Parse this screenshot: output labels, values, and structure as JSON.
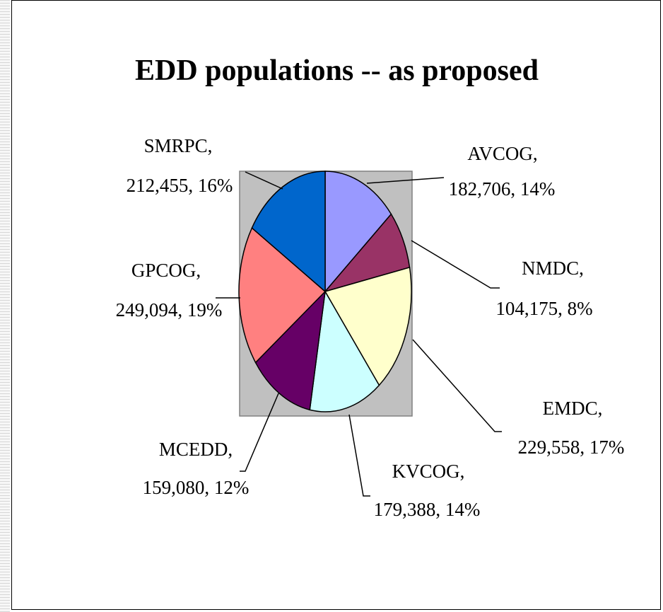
{
  "chart_data": {
    "type": "pie",
    "title": "EDD populations -- as proposed",
    "slices": [
      {
        "name": "AVCOG",
        "value": 182706,
        "percent": "14%",
        "value_text": "182,706, 14%",
        "color": "#9999FF"
      },
      {
        "name": "NMDC",
        "value": 104175,
        "percent": "8%",
        "value_text": "104,175, 8%",
        "color": "#993366"
      },
      {
        "name": "EMDC",
        "value": 229558,
        "percent": "17%",
        "value_text": "229,558, 17%",
        "color": "#FFFFCC"
      },
      {
        "name": "KVCOG",
        "value": 179388,
        "percent": "14%",
        "value_text": "179,388, 14%",
        "color": "#CCFFFF"
      },
      {
        "name": "MCEDD",
        "value": 159080,
        "percent": "12%",
        "value_text": "159,080, 12%",
        "color": "#660066"
      },
      {
        "name": "GPCOG",
        "value": 249094,
        "percent": "19%",
        "value_text": "249,094, 19%",
        "color": "#FF8080"
      },
      {
        "name": "SMRPC",
        "value": 212455,
        "percent": "16%",
        "value_text": "212,455, 16%",
        "color": "#0066CC"
      }
    ],
    "plot_area_color": "#C0C0C0"
  }
}
